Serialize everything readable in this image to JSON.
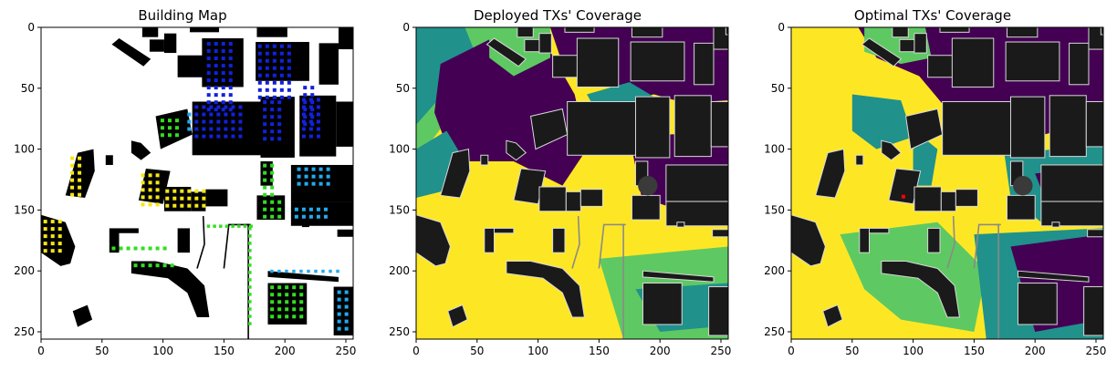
{
  "figure": {
    "panels": [
      {
        "title": "Building Map"
      },
      {
        "title": "Deployed TXs' Coverage"
      },
      {
        "title": "Optimal TXs' Coverage"
      }
    ]
  },
  "chart_data": [
    {
      "type": "heatmap",
      "title": "Building Map",
      "xlabel": "",
      "ylabel": "",
      "xlim": [
        0,
        256
      ],
      "ylim": [
        256,
        0
      ],
      "xticks": [
        "0",
        "50",
        "100",
        "150",
        "200",
        "250"
      ],
      "yticks": [
        "0",
        "50",
        "100",
        "150",
        "200",
        "250"
      ],
      "background": "#ffffff",
      "building_color": "#000000",
      "marker_colors": [
        "#1122dd",
        "#22aaee",
        "#33dd22",
        "#f5e614"
      ]
    },
    {
      "type": "heatmap",
      "title": "Deployed TXs' Coverage",
      "xlabel": "",
      "ylabel": "",
      "xlim": [
        0,
        256
      ],
      "ylim": [
        256,
        0
      ],
      "xticks": [
        "0",
        "50",
        "100",
        "150",
        "200",
        "250"
      ],
      "yticks": [
        "0",
        "50",
        "100",
        "150",
        "200",
        "250"
      ],
      "colormap": [
        "#440154",
        "#21918c",
        "#5ec962",
        "#fde725"
      ],
      "building_color": "#1a1a1a"
    },
    {
      "type": "heatmap",
      "title": "Optimal TXs' Coverage",
      "xlabel": "",
      "ylabel": "",
      "xlim": [
        0,
        256
      ],
      "ylim": [
        256,
        0
      ],
      "xticks": [
        "0",
        "50",
        "100",
        "150",
        "200",
        "250"
      ],
      "yticks": [
        "0",
        "50",
        "100",
        "150",
        "200",
        "250"
      ],
      "colormap": [
        "#440154",
        "#21918c",
        "#5ec962",
        "#fde725"
      ],
      "building_color": "#1a1a1a",
      "tx_marker": {
        "x": 92,
        "y": 139,
        "color": "#ff0000"
      }
    }
  ]
}
